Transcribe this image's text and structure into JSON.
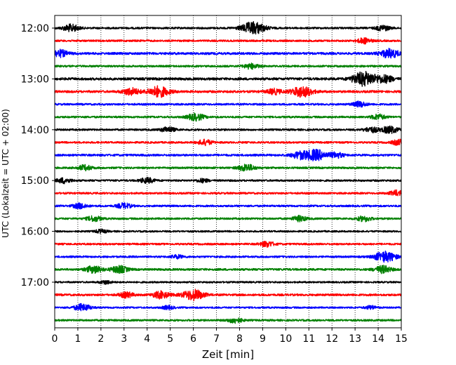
{
  "chart_data": {
    "type": "line",
    "title": "",
    "xlabel": "Zeit  [min]",
    "ylabel": "UTC (Lokalzeit = UTC + 02:00)",
    "xlim": [
      0,
      15
    ],
    "x_ticks": [
      "0",
      "1",
      "2",
      "3",
      "4",
      "5",
      "6",
      "7",
      "8",
      "9",
      "10",
      "11",
      "12",
      "13",
      "14",
      "15"
    ],
    "y_ticks": [
      "12:00",
      "13:00",
      "14:00",
      "15:00",
      "16:00",
      "17:00"
    ],
    "grid": "vertical dotted",
    "row_interval_min": 15,
    "row_colors": [
      "#000000",
      "#ff0000",
      "#0000ff",
      "#008000"
    ],
    "rows": [
      {
        "start": "12:00",
        "color": "#000000",
        "amplitude": 1.0,
        "events": [
          {
            "t": 0.7,
            "a": 4
          },
          {
            "t": 8.6,
            "a": 7
          },
          {
            "t": 14.2,
            "a": 3
          }
        ]
      },
      {
        "start": "12:15",
        "color": "#ff0000",
        "amplitude": 1.0,
        "events": [
          {
            "t": 13.4,
            "a": 3
          }
        ]
      },
      {
        "start": "12:30",
        "color": "#0000ff",
        "amplitude": 1.2,
        "events": [
          {
            "t": 0.2,
            "a": 4
          },
          {
            "t": 14.5,
            "a": 5
          }
        ]
      },
      {
        "start": "12:45",
        "color": "#008000",
        "amplitude": 1.0,
        "events": [
          {
            "t": 8.5,
            "a": 3
          }
        ]
      },
      {
        "start": "13:00",
        "color": "#000000",
        "amplitude": 1.3,
        "events": [
          {
            "t": 13.2,
            "a": 5
          },
          {
            "t": 13.6,
            "a": 5
          },
          {
            "t": 14.3,
            "a": 4
          }
        ]
      },
      {
        "start": "13:15",
        "color": "#ff0000",
        "amplitude": 1.2,
        "events": [
          {
            "t": 4.5,
            "a": 6
          },
          {
            "t": 3.3,
            "a": 4
          },
          {
            "t": 10.7,
            "a": 6
          },
          {
            "t": 9.5,
            "a": 3
          }
        ]
      },
      {
        "start": "13:30",
        "color": "#0000ff",
        "amplitude": 1.0,
        "events": [
          {
            "t": 13.2,
            "a": 3
          }
        ]
      },
      {
        "start": "13:45",
        "color": "#008000",
        "amplitude": 1.0,
        "events": [
          {
            "t": 6.1,
            "a": 4
          },
          {
            "t": 14.0,
            "a": 3
          }
        ]
      },
      {
        "start": "14:00",
        "color": "#000000",
        "amplitude": 1.0,
        "events": [
          {
            "t": 4.9,
            "a": 3
          },
          {
            "t": 13.7,
            "a": 3
          },
          {
            "t": 14.5,
            "a": 4
          }
        ]
      },
      {
        "start": "14:15",
        "color": "#ff0000",
        "amplitude": 1.0,
        "events": [
          {
            "t": 6.5,
            "a": 3
          },
          {
            "t": 14.9,
            "a": 3
          }
        ]
      },
      {
        "start": "14:30",
        "color": "#0000ff",
        "amplitude": 1.1,
        "events": [
          {
            "t": 11.3,
            "a": 6
          },
          {
            "t": 10.6,
            "a": 4
          },
          {
            "t": 12.2,
            "a": 3
          }
        ]
      },
      {
        "start": "14:45",
        "color": "#008000",
        "amplitude": 1.0,
        "events": [
          {
            "t": 1.3,
            "a": 3
          },
          {
            "t": 8.3,
            "a": 4
          }
        ]
      },
      {
        "start": "15:00",
        "color": "#000000",
        "amplitude": 1.0,
        "events": [
          {
            "t": 0.4,
            "a": 3
          },
          {
            "t": 4.0,
            "a": 3
          },
          {
            "t": 6.4,
            "a": 2
          }
        ]
      },
      {
        "start": "15:15",
        "color": "#ff0000",
        "amplitude": 1.0,
        "events": [
          {
            "t": 14.8,
            "a": 3
          }
        ]
      },
      {
        "start": "15:30",
        "color": "#0000ff",
        "amplitude": 1.0,
        "events": [
          {
            "t": 1.1,
            "a": 3
          },
          {
            "t": 3.0,
            "a": 3
          }
        ]
      },
      {
        "start": "15:45",
        "color": "#008000",
        "amplitude": 1.0,
        "events": [
          {
            "t": 1.7,
            "a": 3
          },
          {
            "t": 10.6,
            "a": 3
          },
          {
            "t": 13.4,
            "a": 3
          }
        ]
      },
      {
        "start": "16:00",
        "color": "#000000",
        "amplitude": 0.9,
        "events": [
          {
            "t": 2.0,
            "a": 2
          }
        ]
      },
      {
        "start": "16:15",
        "color": "#ff0000",
        "amplitude": 1.0,
        "events": [
          {
            "t": 9.2,
            "a": 3
          }
        ]
      },
      {
        "start": "16:30",
        "color": "#0000ff",
        "amplitude": 1.0,
        "events": [
          {
            "t": 14.3,
            "a": 6
          },
          {
            "t": 5.3,
            "a": 2
          }
        ]
      },
      {
        "start": "16:45",
        "color": "#008000",
        "amplitude": 1.1,
        "events": [
          {
            "t": 1.7,
            "a": 4
          },
          {
            "t": 2.8,
            "a": 4
          },
          {
            "t": 14.2,
            "a": 4
          }
        ]
      },
      {
        "start": "17:00",
        "color": "#000000",
        "amplitude": 0.9,
        "events": [
          {
            "t": 2.2,
            "a": 2
          }
        ]
      },
      {
        "start": "17:15",
        "color": "#ff0000",
        "amplitude": 1.1,
        "events": [
          {
            "t": 6.0,
            "a": 6
          },
          {
            "t": 4.6,
            "a": 4
          },
          {
            "t": 3.1,
            "a": 3
          }
        ]
      },
      {
        "start": "17:30",
        "color": "#0000ff",
        "amplitude": 0.9,
        "events": [
          {
            "t": 1.2,
            "a": 4
          },
          {
            "t": 4.9,
            "a": 2
          },
          {
            "t": 13.7,
            "a": 2
          }
        ]
      },
      {
        "start": "17:45",
        "color": "#008000",
        "amplitude": 1.0,
        "events": [
          {
            "t": 7.8,
            "a": 3
          }
        ]
      }
    ]
  }
}
